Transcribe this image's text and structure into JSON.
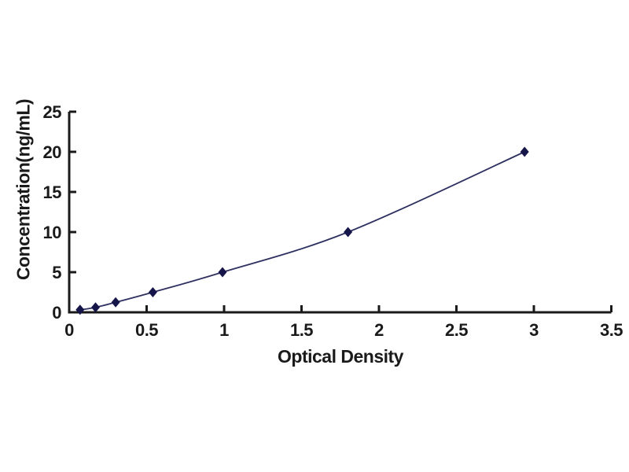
{
  "chart_data": {
    "type": "line",
    "xlabel": "Optical Density",
    "ylabel": "Concentration(ng/mL)",
    "xlim": [
      0,
      3.5
    ],
    "ylim": [
      0,
      25
    ],
    "xticks": [
      0,
      0.5,
      1,
      1.5,
      2,
      2.5,
      3,
      3.5
    ],
    "xtick_labels": [
      "0",
      "0.5",
      "1",
      "1.5",
      "2",
      "2.5",
      "3",
      "3.5"
    ],
    "yticks": [
      0,
      5,
      10,
      15,
      20,
      25
    ],
    "ytick_labels": [
      "0",
      "5",
      "10",
      "15",
      "20",
      "25"
    ],
    "grid": false,
    "legend_position": "none",
    "series": [
      {
        "x": [
          0.07,
          0.17,
          0.3,
          0.54,
          0.99,
          1.8,
          2.94
        ],
        "y": [
          0.31,
          0.62,
          1.25,
          2.5,
          5,
          10,
          20
        ],
        "marker": "diamond",
        "line_color": "#2e3060",
        "marker_color": "#15154a"
      }
    ]
  },
  "colors": {
    "background": "#ffffff",
    "axis": "#1a1a1a",
    "text": "#1a1a1a"
  }
}
